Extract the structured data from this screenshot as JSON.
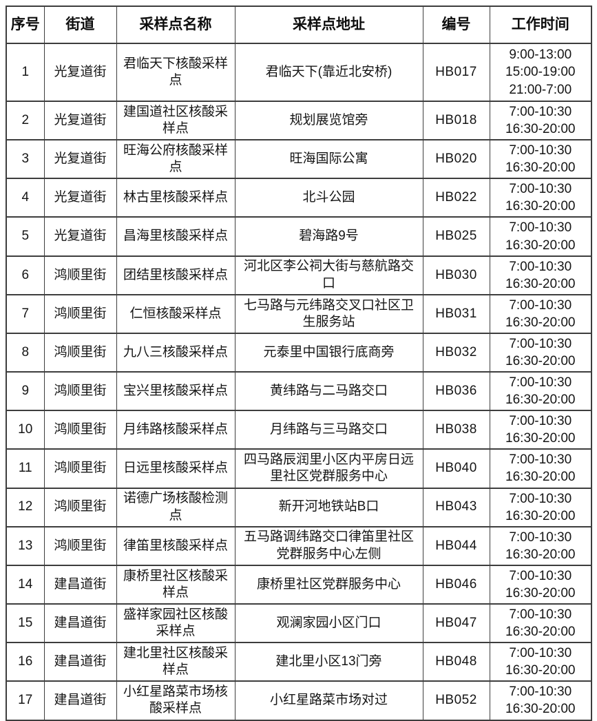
{
  "colors": {
    "background": "#ffffff",
    "border": "#3d3d3d",
    "text": "#111111"
  },
  "table": {
    "headers": [
      "序号",
      "街道",
      "采样点名称",
      "采样点地址",
      "编号",
      "工作时间"
    ],
    "rows": [
      {
        "no": "1",
        "street": "光复道街",
        "name": "君临天下核酸采样点",
        "address": "君临天下(靠近北安桥)",
        "code": "HB017",
        "hours": [
          "9:00-13:00",
          "15:00-19:00",
          "21:00-7:00"
        ]
      },
      {
        "no": "2",
        "street": "光复道街",
        "name": "建国道社区核酸采样点",
        "address": "规划展览馆旁",
        "code": "HB018",
        "hours": [
          "7:00-10:30",
          "16:30-20:00"
        ]
      },
      {
        "no": "3",
        "street": "光复道街",
        "name": "旺海公府核酸采样点",
        "address": "旺海国际公寓",
        "code": "HB020",
        "hours": [
          "7:00-10:30",
          "16:30-20:00"
        ]
      },
      {
        "no": "4",
        "street": "光复道街",
        "name": "林古里核酸采样点",
        "address": "北斗公园",
        "code": "HB022",
        "hours": [
          "7:00-10:30",
          "16:30-20:00"
        ]
      },
      {
        "no": "5",
        "street": "光复道街",
        "name": "昌海里核酸采样点",
        "address": "碧海路9号",
        "code": "HB025",
        "hours": [
          "7:00-10:30",
          "16:30-20:00"
        ]
      },
      {
        "no": "6",
        "street": "鸿顺里街",
        "name": "团结里核酸采样点",
        "address": "河北区李公祠大街与慈航路交口",
        "code": "HB030",
        "hours": [
          "7:00-10:30",
          "16:30-20:00"
        ]
      },
      {
        "no": "7",
        "street": "鸿顺里街",
        "name": "仁恒核酸采样点",
        "address": "七马路与元纬路交叉口社区卫生服务站",
        "code": "HB031",
        "hours": [
          "7:00-10:30",
          "16:30-20:00"
        ]
      },
      {
        "no": "8",
        "street": "鸿顺里街",
        "name": "九八三核酸采样点",
        "address": "元泰里中国银行底商旁",
        "code": "HB032",
        "hours": [
          "7:00-10:30",
          "16:30-20:00"
        ]
      },
      {
        "no": "9",
        "street": "鸿顺里街",
        "name": "宝兴里核酸采样点",
        "address": "黄纬路与二马路交口",
        "code": "HB036",
        "hours": [
          "7:00-10:30",
          "16:30-20:00"
        ]
      },
      {
        "no": "10",
        "street": "鸿顺里街",
        "name": "月纬路核酸采样点",
        "address": "月纬路与三马路交口",
        "code": "HB038",
        "hours": [
          "7:00-10:30",
          "16:30-20:00"
        ]
      },
      {
        "no": "11",
        "street": "鸿顺里街",
        "name": "日远里核酸采样点",
        "address": "四马路辰润里小区内平房日远里社区党群服务中心",
        "code": "HB040",
        "hours": [
          "7:00-10:30",
          "16:30-20:00"
        ]
      },
      {
        "no": "12",
        "street": "鸿顺里街",
        "name": "诺德广场核酸检测点",
        "address": "新开河地铁站B口",
        "code": "HB043",
        "hours": [
          "7:00-10:30",
          "16:30-20:00"
        ]
      },
      {
        "no": "13",
        "street": "鸿顺里街",
        "name": "律笛里核酸采样点",
        "address": "五马路调纬路交口律笛里社区党群服务中心左侧",
        "code": "HB044",
        "hours": [
          "7:00-10:30",
          "16:30-20:00"
        ]
      },
      {
        "no": "14",
        "street": "建昌道街",
        "name": "康桥里社区核酸采样点",
        "address": "康桥里社区党群服务中心",
        "code": "HB046",
        "hours": [
          "7:00-10:30",
          "16:30-20:00"
        ]
      },
      {
        "no": "15",
        "street": "建昌道街",
        "name": "盛祥家园社区核酸采样点",
        "address": "观澜家园小区门口",
        "code": "HB047",
        "hours": [
          "7:00-10:30",
          "16:30-20:00"
        ]
      },
      {
        "no": "16",
        "street": "建昌道街",
        "name": "建北里社区核酸采样点",
        "address": "建北里小区13门旁",
        "code": "HB048",
        "hours": [
          "7:00-10:30",
          "16:30-20:00"
        ]
      },
      {
        "no": "17",
        "street": "建昌道街",
        "name": "小红星路菜市场核酸采样点",
        "address": "小红星路菜市场对过",
        "code": "HB052",
        "hours": [
          "7:00-10:30",
          "16:30-20:00"
        ]
      }
    ]
  }
}
